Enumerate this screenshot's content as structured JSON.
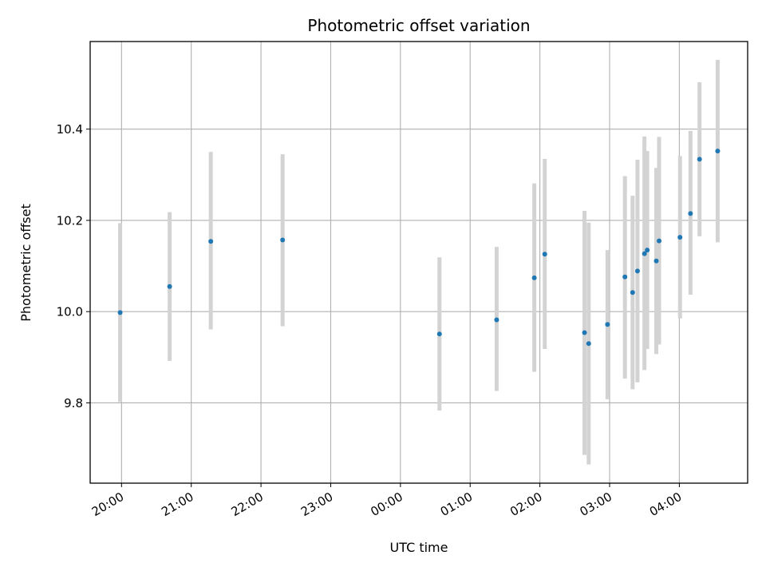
{
  "chart_data": {
    "type": "scatter",
    "title": "Photometric offset variation",
    "xlabel": "UTC time",
    "ylabel": "Photometric offset",
    "x_unit": "hours (UTC, continuing past midnight)",
    "xlim": [
      19.55,
      28.98
    ],
    "ylim": [
      9.624,
      10.592
    ],
    "grid": true,
    "x_ticks": [
      {
        "value": 20,
        "label": "20:00"
      },
      {
        "value": 21,
        "label": "21:00"
      },
      {
        "value": 22,
        "label": "22:00"
      },
      {
        "value": 23,
        "label": "23:00"
      },
      {
        "value": 24,
        "label": "00:00"
      },
      {
        "value": 25,
        "label": "01:00"
      },
      {
        "value": 26,
        "label": "02:00"
      },
      {
        "value": 27,
        "label": "03:00"
      },
      {
        "value": 28,
        "label": "04:00"
      }
    ],
    "y_ticks": [
      {
        "value": 9.8,
        "label": "9.8"
      },
      {
        "value": 10.0,
        "label": "10.0"
      },
      {
        "value": 10.2,
        "label": "10.2"
      },
      {
        "value": 10.4,
        "label": "10.4"
      }
    ],
    "point_color": "#1f77b4",
    "errorbar_color": "#d3d3d3",
    "points": [
      {
        "x": 19.98,
        "y": 9.998,
        "yerr": [
          9.802,
          10.194
        ]
      },
      {
        "x": 20.69,
        "y": 10.055,
        "yerr": [
          9.892,
          10.218
        ]
      },
      {
        "x": 21.28,
        "y": 10.154,
        "yerr": [
          9.961,
          10.35
        ]
      },
      {
        "x": 22.31,
        "y": 10.157,
        "yerr": [
          9.968,
          10.345
        ]
      },
      {
        "x": 24.56,
        "y": 9.951,
        "yerr": [
          9.783,
          10.119
        ]
      },
      {
        "x": 25.38,
        "y": 9.982,
        "yerr": [
          9.826,
          10.142
        ]
      },
      {
        "x": 25.92,
        "y": 10.074,
        "yerr": [
          9.868,
          10.281
        ]
      },
      {
        "x": 26.07,
        "y": 10.126,
        "yerr": [
          9.918,
          10.335
        ]
      },
      {
        "x": 26.64,
        "y": 9.954,
        "yerr": [
          9.686,
          10.221
        ]
      },
      {
        "x": 26.7,
        "y": 9.93,
        "yerr": [
          9.665,
          10.195
        ]
      },
      {
        "x": 26.97,
        "y": 9.972,
        "yerr": [
          9.808,
          10.135
        ]
      },
      {
        "x": 27.22,
        "y": 10.076,
        "yerr": [
          9.853,
          10.297
        ]
      },
      {
        "x": 27.33,
        "y": 10.042,
        "yerr": [
          9.83,
          10.254
        ]
      },
      {
        "x": 27.4,
        "y": 10.089,
        "yerr": [
          9.845,
          10.333
        ]
      },
      {
        "x": 27.5,
        "y": 10.127,
        "yerr": [
          9.872,
          10.384
        ]
      },
      {
        "x": 27.54,
        "y": 10.135,
        "yerr": [
          9.918,
          10.352
        ]
      },
      {
        "x": 27.67,
        "y": 10.111,
        "yerr": [
          9.907,
          10.315
        ]
      },
      {
        "x": 27.71,
        "y": 10.155,
        "yerr": [
          9.928,
          10.383
        ]
      },
      {
        "x": 28.01,
        "y": 10.163,
        "yerr": [
          9.985,
          10.341
        ]
      },
      {
        "x": 28.16,
        "y": 10.215,
        "yerr": [
          10.037,
          10.396
        ]
      },
      {
        "x": 28.29,
        "y": 10.334,
        "yerr": [
          10.165,
          10.503
        ]
      },
      {
        "x": 28.55,
        "y": 10.352,
        "yerr": [
          10.152,
          10.552
        ]
      }
    ]
  }
}
